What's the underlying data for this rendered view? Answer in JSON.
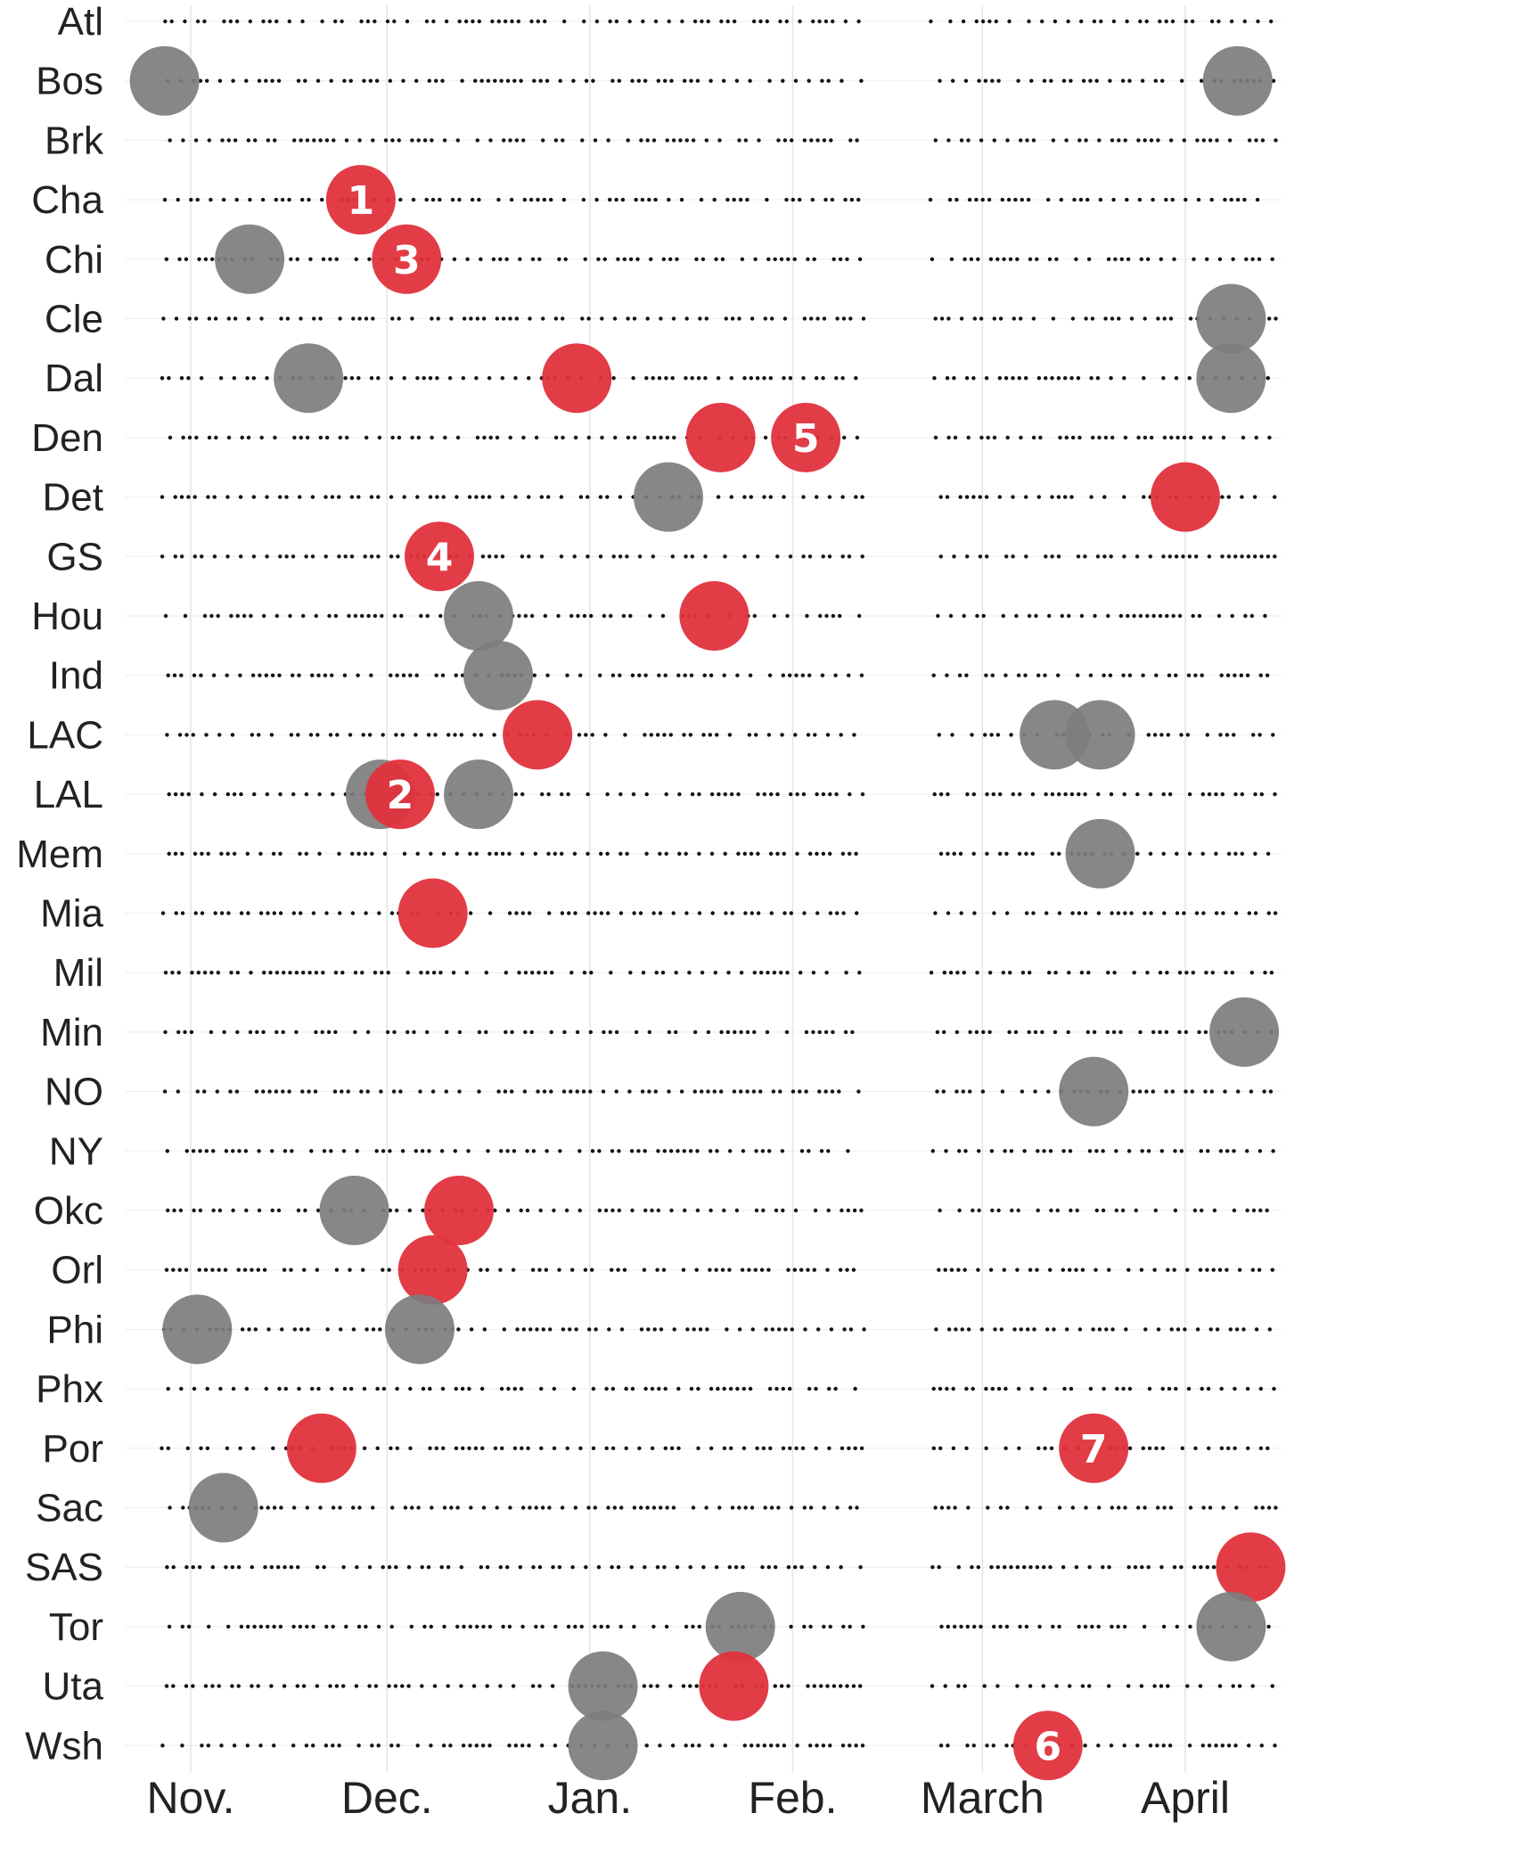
{
  "chart_data": {
    "type": "scatter",
    "title": "",
    "x_axis": {
      "type": "date",
      "range": [
        "2015-10-27",
        "2016-04-13"
      ],
      "ticks": [
        {
          "label": "Nov.",
          "date": "2015-11-01"
        },
        {
          "label": "Dec.",
          "date": "2015-12-01"
        },
        {
          "label": "Jan.",
          "date": "2016-01-01"
        },
        {
          "label": "Feb.",
          "date": "2016-02-01"
        },
        {
          "label": "March",
          "date": "2016-03-01"
        },
        {
          "label": "April",
          "date": "2016-04-01"
        }
      ],
      "grid": true
    },
    "y_axis": {
      "type": "category",
      "categories": [
        "Atl",
        "Bos",
        "Brk",
        "Cha",
        "Chi",
        "Cle",
        "Dal",
        "Den",
        "Det",
        "GS",
        "Hou",
        "Ind",
        "LAC",
        "LAL",
        "Mem",
        "Mia",
        "Mil",
        "Min",
        "NO",
        "NY",
        "Okc",
        "Orl",
        "Phi",
        "Phx",
        "Por",
        "Sac",
        "SAS",
        "Tor",
        "Uta",
        "Wsh"
      ]
    },
    "colors": {
      "gray": "#7d7d7e",
      "red": "#e0313d",
      "games": "#111111",
      "grid": "#e4e4e4"
    },
    "markers": [
      {
        "team": "Bos",
        "date": "2015-10-28",
        "color": "gray"
      },
      {
        "team": "Bos",
        "date": "2016-04-09",
        "color": "gray"
      },
      {
        "team": "Cha",
        "date": "2015-11-27",
        "color": "red",
        "label": "1"
      },
      {
        "team": "Chi",
        "date": "2015-11-10",
        "color": "gray"
      },
      {
        "team": "Chi",
        "date": "2015-12-04",
        "color": "red",
        "label": "3"
      },
      {
        "team": "Cle",
        "date": "2016-04-08",
        "color": "gray"
      },
      {
        "team": "Dal",
        "date": "2015-11-19",
        "color": "gray"
      },
      {
        "team": "Dal",
        "date": "2015-12-30",
        "color": "red"
      },
      {
        "team": "Dal",
        "date": "2016-04-08",
        "color": "gray"
      },
      {
        "team": "Den",
        "date": "2016-01-21",
        "color": "red"
      },
      {
        "team": "Den",
        "date": "2016-02-03",
        "color": "red",
        "label": "5"
      },
      {
        "team": "Det",
        "date": "2016-01-13",
        "color": "gray"
      },
      {
        "team": "Det",
        "date": "2016-04-01",
        "color": "red"
      },
      {
        "team": "GS",
        "date": "2015-12-09",
        "color": "red",
        "label": "4"
      },
      {
        "team": "Hou",
        "date": "2015-12-15",
        "color": "gray"
      },
      {
        "team": "Hou",
        "date": "2016-01-20",
        "color": "red"
      },
      {
        "team": "Ind",
        "date": "2015-12-18",
        "color": "gray"
      },
      {
        "team": "LAC",
        "date": "2015-12-24",
        "color": "red"
      },
      {
        "team": "LAC",
        "date": "2016-03-12",
        "color": "gray"
      },
      {
        "team": "LAC",
        "date": "2016-03-19",
        "color": "gray"
      },
      {
        "team": "LAL",
        "date": "2015-11-30",
        "color": "gray"
      },
      {
        "team": "LAL",
        "date": "2015-12-03",
        "color": "red",
        "label": "2"
      },
      {
        "team": "LAL",
        "date": "2015-12-15",
        "color": "gray"
      },
      {
        "team": "Mem",
        "date": "2016-03-19",
        "color": "gray"
      },
      {
        "team": "Mia",
        "date": "2015-12-08",
        "color": "red"
      },
      {
        "team": "Min",
        "date": "2016-04-10",
        "color": "gray"
      },
      {
        "team": "NO",
        "date": "2016-03-18",
        "color": "gray"
      },
      {
        "team": "Okc",
        "date": "2015-11-26",
        "color": "gray"
      },
      {
        "team": "Okc",
        "date": "2015-12-12",
        "color": "red"
      },
      {
        "team": "Orl",
        "date": "2015-12-08",
        "color": "red"
      },
      {
        "team": "Phi",
        "date": "2015-11-02",
        "color": "gray"
      },
      {
        "team": "Phi",
        "date": "2015-12-06",
        "color": "gray"
      },
      {
        "team": "Por",
        "date": "2015-11-21",
        "color": "red"
      },
      {
        "team": "Por",
        "date": "2016-03-18",
        "color": "red",
        "label": "7"
      },
      {
        "team": "Sac",
        "date": "2015-11-06",
        "color": "gray"
      },
      {
        "team": "SAS",
        "date": "2016-04-11",
        "color": "red"
      },
      {
        "team": "Tor",
        "date": "2016-01-24",
        "color": "gray"
      },
      {
        "team": "Tor",
        "date": "2016-04-08",
        "color": "gray"
      },
      {
        "team": "Uta",
        "date": "2016-01-03",
        "color": "gray"
      },
      {
        "team": "Uta",
        "date": "2016-01-23",
        "color": "red"
      },
      {
        "team": "Wsh",
        "date": "2016-01-03",
        "color": "gray"
      },
      {
        "team": "Wsh",
        "date": "2016-03-11",
        "color": "red",
        "label": "6"
      }
    ]
  }
}
